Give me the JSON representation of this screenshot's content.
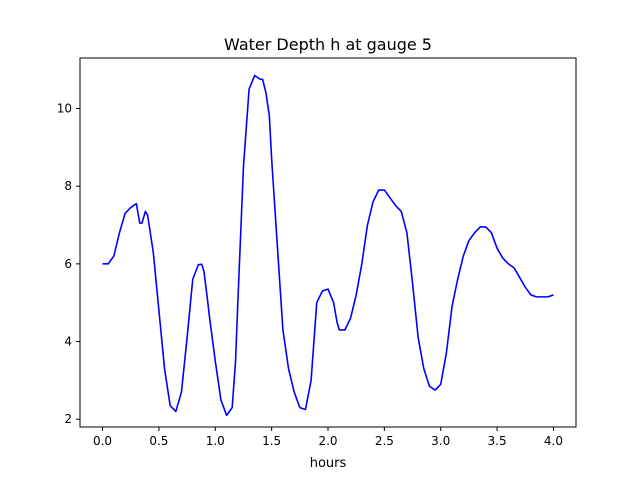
{
  "chart_data": {
    "type": "line",
    "title": "Water Depth h at gauge 5",
    "xlabel": "hours",
    "ylabel": "",
    "xlim": [
      -0.2,
      4.2
    ],
    "ylim": [
      1.8,
      11.3
    ],
    "xticks": [
      0.0,
      0.5,
      1.0,
      1.5,
      2.0,
      2.5,
      3.0,
      3.5,
      4.0
    ],
    "xtick_labels": [
      "0.0",
      "0.5",
      "1.0",
      "1.5",
      "2.0",
      "2.5",
      "3.0",
      "3.5",
      "4.0"
    ],
    "yticks": [
      2,
      4,
      6,
      8,
      10
    ],
    "ytick_labels": [
      "2",
      "4",
      "6",
      "8",
      "10"
    ],
    "grid": false,
    "legend": "none",
    "series": [
      {
        "color": "#0000ff",
        "x": [
          0.0,
          0.05,
          0.1,
          0.15,
          0.2,
          0.25,
          0.3,
          0.33,
          0.35,
          0.38,
          0.4,
          0.45,
          0.5,
          0.55,
          0.6,
          0.65,
          0.7,
          0.75,
          0.8,
          0.85,
          0.88,
          0.9,
          0.93,
          0.95,
          1.0,
          1.05,
          1.1,
          1.15,
          1.18,
          1.2,
          1.25,
          1.3,
          1.35,
          1.4,
          1.42,
          1.45,
          1.48,
          1.5,
          1.55,
          1.6,
          1.65,
          1.7,
          1.75,
          1.8,
          1.85,
          1.87,
          1.9,
          1.95,
          2.0,
          2.05,
          2.08,
          2.1,
          2.15,
          2.2,
          2.25,
          2.3,
          2.35,
          2.4,
          2.45,
          2.5,
          2.55,
          2.6,
          2.65,
          2.7,
          2.75,
          2.8,
          2.85,
          2.9,
          2.95,
          3.0,
          3.05,
          3.1,
          3.15,
          3.2,
          3.25,
          3.3,
          3.35,
          3.4,
          3.45,
          3.5,
          3.55,
          3.6,
          3.65,
          3.7,
          3.75,
          3.8,
          3.85,
          3.9,
          3.95,
          4.0
        ],
        "y": [
          6.0,
          6.0,
          6.2,
          6.8,
          7.3,
          7.45,
          7.55,
          7.05,
          7.05,
          7.35,
          7.25,
          6.3,
          4.8,
          3.3,
          2.35,
          2.2,
          2.7,
          4.1,
          5.6,
          5.98,
          5.99,
          5.8,
          5.1,
          4.6,
          3.5,
          2.5,
          2.1,
          2.3,
          3.5,
          5.0,
          8.5,
          10.5,
          10.85,
          10.75,
          10.75,
          10.4,
          9.8,
          8.7,
          6.5,
          4.3,
          3.3,
          2.7,
          2.3,
          2.25,
          3.0,
          3.8,
          5.0,
          5.3,
          5.35,
          5.0,
          4.5,
          4.3,
          4.3,
          4.6,
          5.2,
          6.0,
          7.0,
          7.6,
          7.9,
          7.9,
          7.7,
          7.5,
          7.35,
          6.8,
          5.5,
          4.1,
          3.3,
          2.85,
          2.75,
          2.9,
          3.7,
          4.9,
          5.6,
          6.2,
          6.6,
          6.8,
          6.95,
          6.95,
          6.8,
          6.4,
          6.15,
          6.0,
          5.9,
          5.65,
          5.4,
          5.2,
          5.15,
          5.15,
          5.15,
          5.2
        ]
      }
    ]
  }
}
